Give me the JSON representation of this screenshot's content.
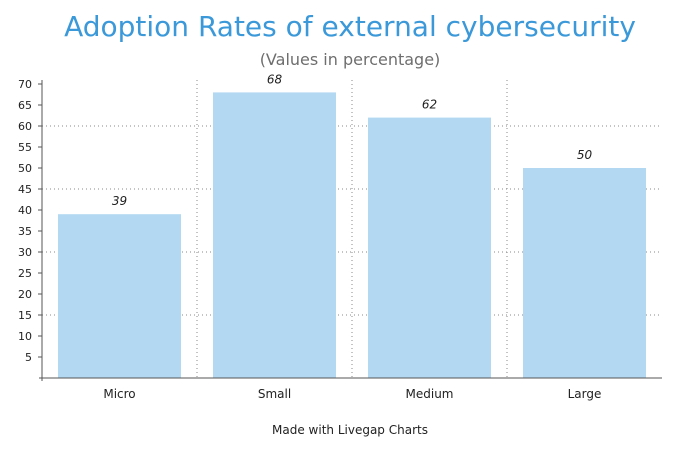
{
  "chart_data": {
    "type": "bar",
    "title": "Adoption Rates of external cybersecurity",
    "subtitle": "(Values in percentage)",
    "categories": [
      "Micro",
      "Small",
      "Medium",
      "Large"
    ],
    "values": [
      39,
      68,
      62,
      50
    ],
    "data_labels": [
      "39",
      "68",
      "62",
      "50"
    ],
    "ylim": [
      0,
      70
    ],
    "yticks": [
      5,
      10,
      15,
      20,
      25,
      30,
      35,
      40,
      45,
      50,
      55,
      60,
      65,
      70
    ],
    "grid_yticks": [
      15,
      30,
      45,
      60
    ],
    "xlabel": "",
    "ylabel": "",
    "grid": true,
    "bar_color": "#b3d9f2",
    "title_color": "#3b99d9"
  },
  "footer": {
    "credit": "Made with Livegap Charts"
  }
}
